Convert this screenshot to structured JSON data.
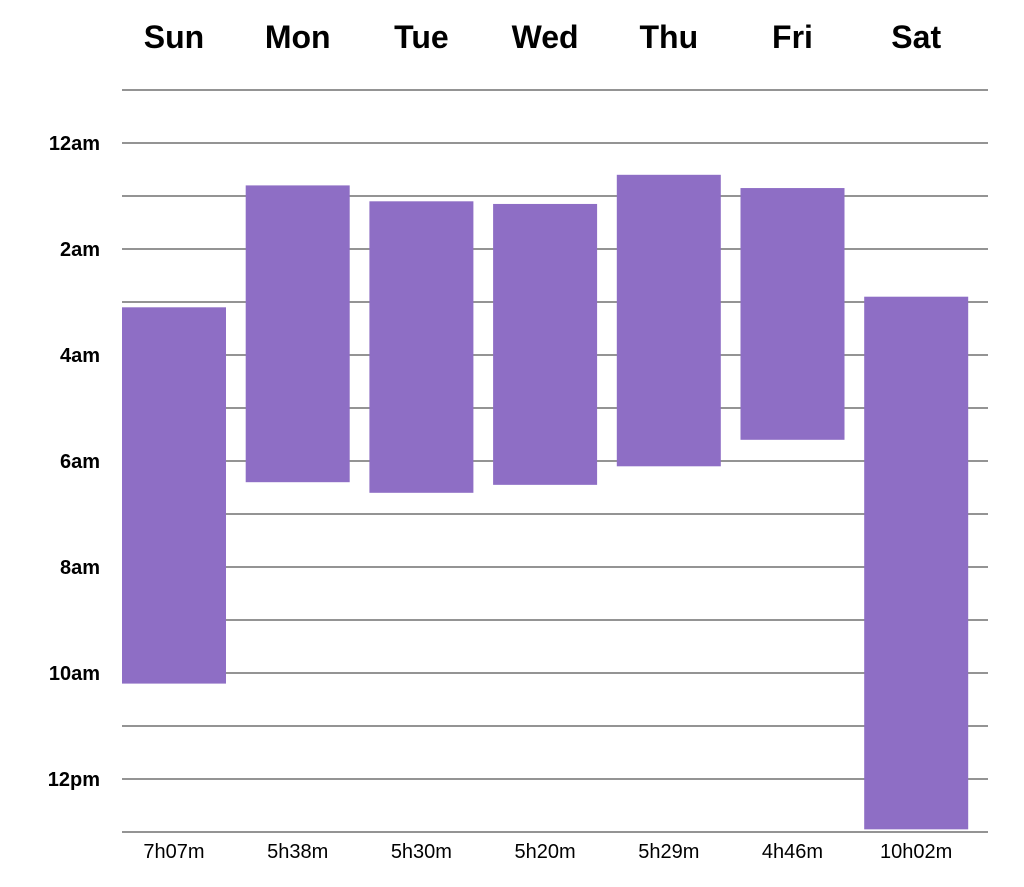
{
  "chart_data": {
    "type": "bar",
    "categories": [
      "Sun",
      "Mon",
      "Tue",
      "Wed",
      "Thu",
      "Fri",
      "Sat"
    ],
    "y_tick_labels": [
      "12am",
      "2am",
      "4am",
      "6am",
      "8am",
      "10am",
      "12pm"
    ],
    "y_tick_values": [
      0,
      2,
      4,
      6,
      8,
      10,
      12
    ],
    "ylim": [
      -1,
      13
    ],
    "y_inverted": true,
    "grid": true,
    "gridline_step_hours": 1,
    "series": [
      {
        "values": [
          {
            "start": 3.1,
            "end": 10.2,
            "label": "7h07m"
          },
          {
            "start": 0.8,
            "end": 6.4,
            "label": "5h38m"
          },
          {
            "start": 1.1,
            "end": 6.6,
            "label": "5h30m"
          },
          {
            "start": 1.15,
            "end": 6.45,
            "label": "5h20m"
          },
          {
            "start": 0.6,
            "end": 6.1,
            "label": "5h29m"
          },
          {
            "start": 0.85,
            "end": 5.6,
            "label": "4h46m"
          },
          {
            "start": 2.9,
            "end": 12.95,
            "label": "10h02m"
          }
        ]
      }
    ],
    "bar_color": "#8e6ec5",
    "grid_color": "#555555",
    "label_color": "#000000"
  }
}
